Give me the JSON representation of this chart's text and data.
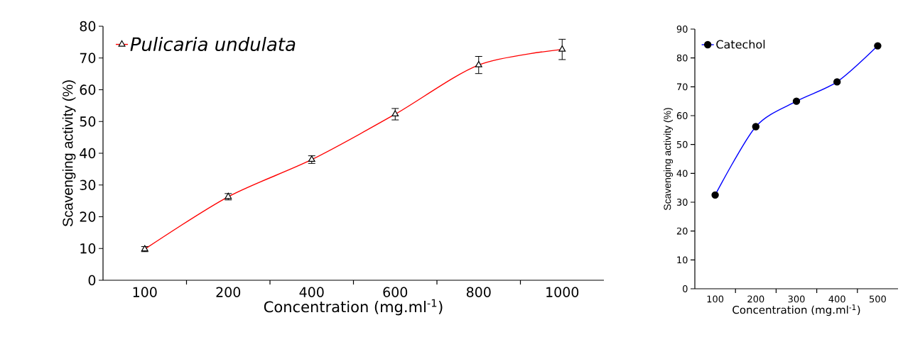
{
  "chart_data": [
    {
      "type": "line",
      "xlabel": "Concentration (mg.ml$^{-1}$)",
      "ylabel": "Scavenging activity (%)",
      "categories": [
        "100",
        "200",
        "400",
        "600",
        "800",
        "1000"
      ],
      "series": [
        {
          "name": "Pulicaria undulata",
          "color": "#ff0000",
          "values": [
            9.8,
            26.3,
            38.0,
            52.3,
            67.8,
            72.7
          ],
          "errors": [
            0.8,
            1.0,
            1.2,
            1.8,
            2.7,
            3.2
          ]
        }
      ],
      "ylim": [
        0,
        80
      ],
      "yticks": [
        0,
        10,
        20,
        30,
        40,
        50,
        60,
        70,
        80
      ],
      "marker": "triangle",
      "legend": "top left",
      "grid": false
    },
    {
      "type": "line",
      "xlabel": "Concentration (mg.ml$^{-1}$)",
      "ylabel": "Scavenging activity (%)",
      "categories": [
        "100",
        "200",
        "300",
        "400",
        "500"
      ],
      "series": [
        {
          "name": "Catechol",
          "color": "#0000ff",
          "values": [
            32.5,
            56.2,
            65.0,
            71.7,
            84.2
          ]
        }
      ],
      "ylim": [
        0,
        90
      ],
      "yticks": [
        0,
        10,
        20,
        30,
        40,
        50,
        60,
        70,
        80,
        90
      ],
      "marker": "circle",
      "legend": "top left",
      "grid": false
    }
  ]
}
